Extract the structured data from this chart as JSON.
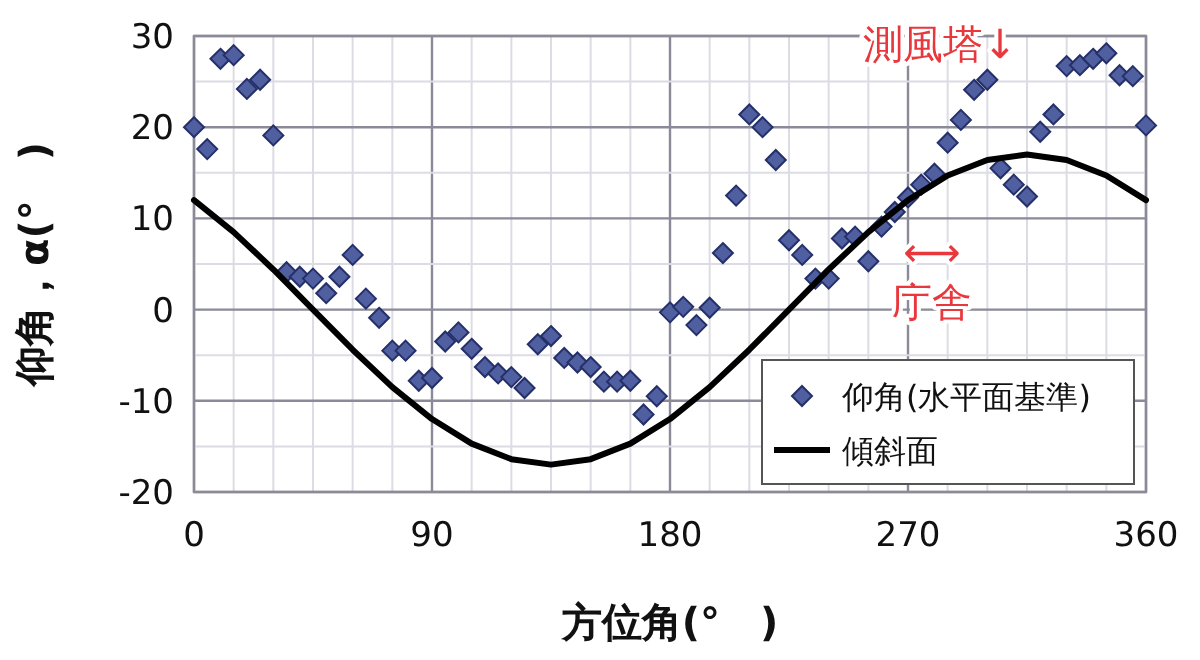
{
  "chart_data": {
    "type": "scatter",
    "xlabel": "方位角(°　)",
    "ylabel": "仰角，α(°　)",
    "xlim": [
      0,
      360
    ],
    "ylim": [
      -20,
      30
    ],
    "xticks": [
      0,
      90,
      180,
      270,
      360
    ],
    "yticks": [
      -20,
      -10,
      0,
      10,
      20,
      30
    ],
    "grid": true,
    "legend": "bottom right",
    "series": [
      {
        "name": "仰角(水平面基準)",
        "marker": "diamond",
        "color": "#4f5f9f",
        "x": [
          0,
          5,
          10,
          15,
          20,
          25,
          30,
          35,
          40,
          45,
          50,
          55,
          60,
          65,
          70,
          75,
          80,
          85,
          90,
          95,
          100,
          105,
          110,
          115,
          120,
          125,
          130,
          135,
          140,
          145,
          150,
          155,
          160,
          165,
          170,
          175,
          180,
          185,
          190,
          195,
          200,
          205,
          210,
          215,
          220,
          225,
          230,
          235,
          240,
          245,
          250,
          255,
          260,
          265,
          270,
          275,
          280,
          285,
          290,
          295,
          300,
          305,
          310,
          315,
          320,
          325,
          330,
          335,
          340,
          345,
          350,
          355,
          360
        ],
        "values": [
          20.0,
          17.6,
          27.5,
          27.9,
          24.2,
          25.2,
          19.1,
          4.1,
          3.6,
          3.4,
          1.8,
          3.6,
          6.0,
          1.2,
          -0.9,
          -4.5,
          -4.5,
          -7.8,
          -7.5,
          -3.5,
          -2.5,
          -4.3,
          -6.3,
          -7.0,
          -7.4,
          -8.6,
          -3.8,
          -2.9,
          -5.3,
          -5.8,
          -6.3,
          -7.9,
          -7.9,
          -7.8,
          -11.5,
          -9.5,
          -0.3,
          0.3,
          -1.7,
          0.2,
          6.2,
          12.5,
          21.4,
          20.0,
          16.4,
          7.6,
          6.0,
          3.4,
          3.4,
          7.8,
          8.0,
          5.3,
          9.1,
          10.7,
          12.3,
          13.7,
          14.9,
          18.3,
          20.8,
          24.1,
          25.2,
          15.5,
          13.7,
          12.4,
          19.5,
          21.4,
          26.7,
          26.8,
          27.5,
          28.1,
          25.7,
          25.6,
          20.2
        ]
      },
      {
        "name": "傾斜面",
        "type": "line",
        "marker": "none",
        "line_style": "solid",
        "color": "#000000",
        "x": [
          0,
          15,
          30,
          45,
          60,
          75,
          90,
          105,
          120,
          135,
          150,
          165,
          180,
          195,
          210,
          225,
          240,
          255,
          270,
          285,
          300,
          315,
          330,
          345,
          360
        ],
        "values": [
          12.0,
          8.5,
          4.4,
          0,
          -4.4,
          -8.5,
          -12.0,
          -14.7,
          -16.4,
          -17,
          -16.4,
          -14.7,
          -12.0,
          -8.5,
          -4.4,
          0,
          4.4,
          8.5,
          12.0,
          14.7,
          16.4,
          17,
          16.4,
          14.7,
          12.0
        ]
      }
    ],
    "annotations": [
      "測風塔↓",
      "⟷",
      "庁舎"
    ]
  }
}
